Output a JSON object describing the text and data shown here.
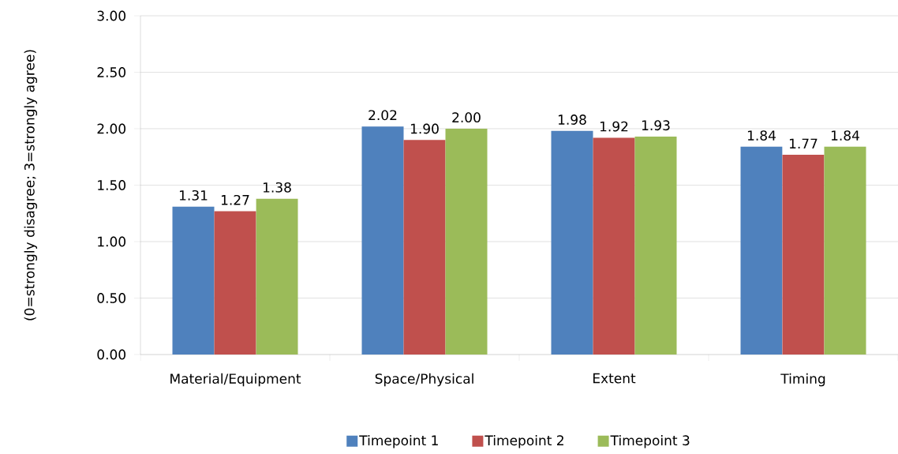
{
  "chart_data": {
    "type": "bar",
    "ylabel": "(0=strongly disagree; 3=strongly agree)",
    "categories": [
      "Material/Equipment",
      "Space/Physical",
      "Extent",
      "Timing"
    ],
    "series": [
      {
        "name": "Timepoint 1",
        "color": "#4f81bd",
        "values": [
          1.31,
          2.02,
          1.98,
          1.84
        ],
        "value_labels": [
          "1.31",
          "2.02",
          "1.98",
          "1.84"
        ]
      },
      {
        "name": "Timepoint 2",
        "color": "#c0504d",
        "values": [
          1.27,
          1.9,
          1.92,
          1.77
        ],
        "value_labels": [
          "1.27",
          "1.90",
          "1.92",
          "1.77"
        ]
      },
      {
        "name": "Timepoint 3",
        "color": "#9bbb59",
        "values": [
          1.38,
          2.0,
          1.93,
          1.84
        ],
        "value_labels": [
          "1.38",
          "2.00",
          "1.93",
          "1.84"
        ]
      }
    ],
    "ylim": [
      0,
      3
    ],
    "yticks": [
      {
        "value": 0,
        "label": "0.00"
      },
      {
        "value": 0.5,
        "label": "0.50"
      },
      {
        "value": 1,
        "label": "1.00"
      },
      {
        "value": 1.5,
        "label": "1.50"
      },
      {
        "value": 2,
        "label": "2.00"
      },
      {
        "value": 2.5,
        "label": "2.50"
      },
      {
        "value": 3,
        "label": "3.00"
      }
    ],
    "grid": "y",
    "legend": "bottom"
  }
}
